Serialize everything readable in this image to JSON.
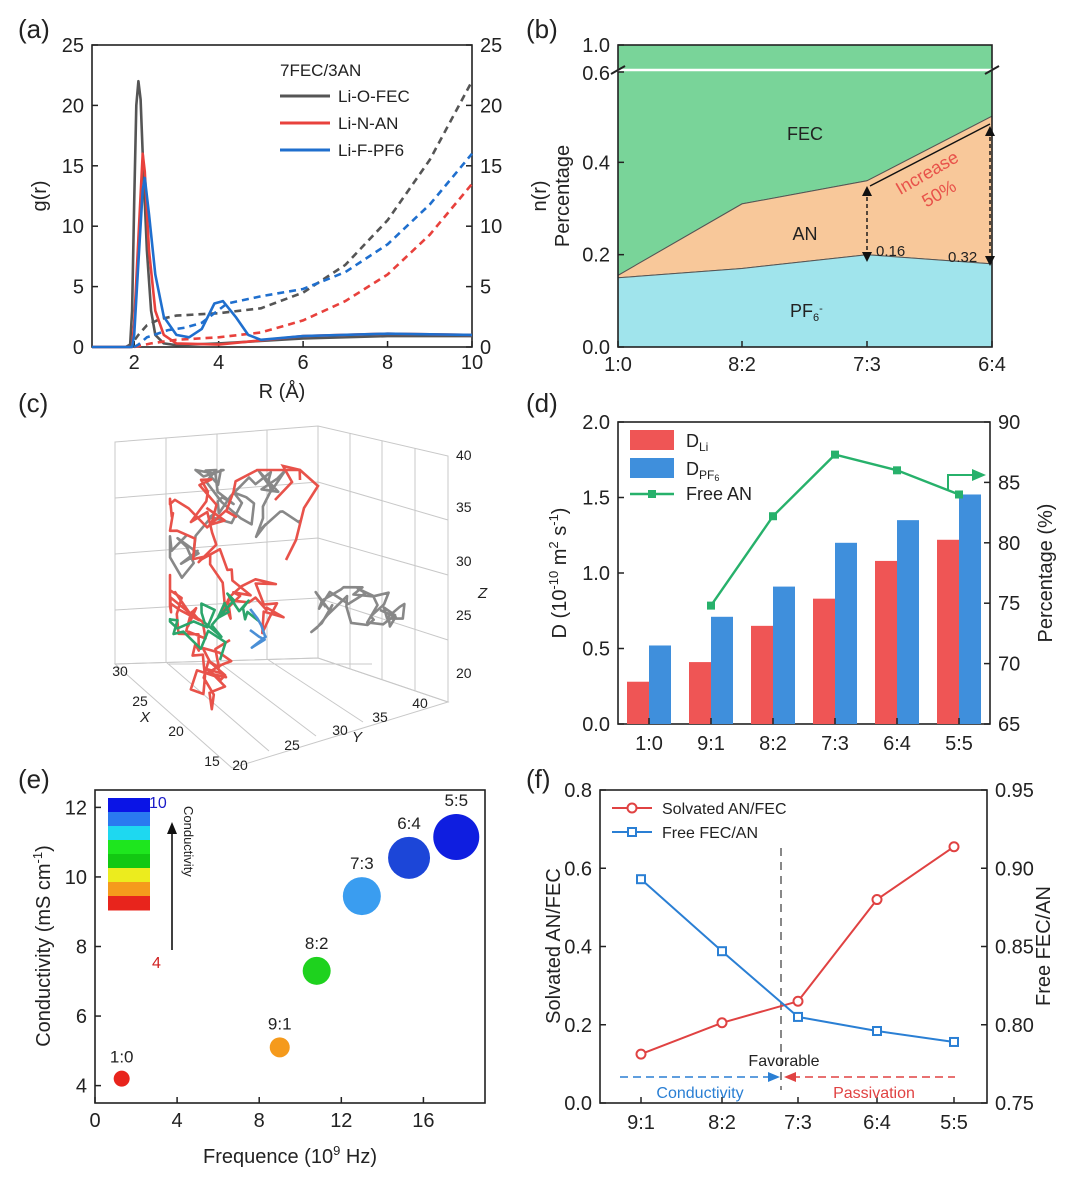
{
  "panel_labels": [
    "(a)",
    "(b)",
    "(c)",
    "(d)",
    "(e)",
    "(f)"
  ],
  "chart_data": [
    {
      "id": "a",
      "type": "line",
      "xlabel": "R (Å)",
      "ylabel": "g(r)",
      "y2label": "n(r)",
      "xlim": [
        1,
        10
      ],
      "ylim": [
        0,
        25
      ],
      "y2lim": [
        0,
        25
      ],
      "xticks": [
        2,
        4,
        6,
        8,
        10
      ],
      "yticks": [
        0,
        5,
        10,
        15,
        20,
        25
      ],
      "legend_title": "7FEC/3AN",
      "series": [
        {
          "name": "Li-O-FEC",
          "color": "#555555",
          "gr": [
            [
              1,
              0
            ],
            [
              1.9,
              0
            ],
            [
              1.95,
              3
            ],
            [
              2.0,
              12
            ],
            [
              2.05,
              20
            ],
            [
              2.1,
              22
            ],
            [
              2.15,
              20.5
            ],
            [
              2.2,
              16
            ],
            [
              2.3,
              8
            ],
            [
              2.4,
              3
            ],
            [
              2.5,
              1
            ],
            [
              2.7,
              0.3
            ],
            [
              3,
              0.15
            ],
            [
              4,
              0.3
            ],
            [
              6,
              0.7
            ],
            [
              8,
              0.9
            ],
            [
              10,
              0.9
            ]
          ],
          "nr": [
            [
              1.8,
              0
            ],
            [
              1.95,
              0.3
            ],
            [
              2.1,
              1
            ],
            [
              2.3,
              1.8
            ],
            [
              2.6,
              2.3
            ],
            [
              3,
              2.6
            ],
            [
              4,
              2.8
            ],
            [
              5,
              3.2
            ],
            [
              6,
              4.5
            ],
            [
              7,
              6.8
            ],
            [
              8,
              10.5
            ],
            [
              9,
              15.5
            ],
            [
              10,
              22
            ]
          ]
        },
        {
          "name": "Li-N-AN",
          "color": "#e8413c",
          "gr": [
            [
              1,
              0
            ],
            [
              1.95,
              0
            ],
            [
              2.0,
              2
            ],
            [
              2.1,
              9
            ],
            [
              2.2,
              16
            ],
            [
              2.25,
              14.5
            ],
            [
              2.35,
              8
            ],
            [
              2.5,
              3
            ],
            [
              2.7,
              1
            ],
            [
              3,
              0.3
            ],
            [
              4,
              0.2
            ],
            [
              6,
              0.9
            ],
            [
              8,
              1.1
            ],
            [
              10,
              1.0
            ]
          ],
          "nr": [
            [
              2.0,
              0
            ],
            [
              2.4,
              0.3
            ],
            [
              3,
              0.6
            ],
            [
              4,
              0.8
            ],
            [
              5,
              1.2
            ],
            [
              6,
              2.2
            ],
            [
              7,
              3.8
            ],
            [
              8,
              6
            ],
            [
              9,
              9.3
            ],
            [
              10,
              13.5
            ]
          ]
        },
        {
          "name": "Li-F-PF6",
          "color": "#1f6fce",
          "gr": [
            [
              1,
              0
            ],
            [
              1.95,
              0
            ],
            [
              2.0,
              1
            ],
            [
              2.1,
              7
            ],
            [
              2.2,
              13
            ],
            [
              2.25,
              14
            ],
            [
              2.35,
              11
            ],
            [
              2.5,
              6
            ],
            [
              2.7,
              2.5
            ],
            [
              3,
              1
            ],
            [
              3.3,
              0.8
            ],
            [
              3.6,
              1.5
            ],
            [
              3.9,
              3.6
            ],
            [
              4.1,
              3.8
            ],
            [
              4.4,
              2.5
            ],
            [
              4.7,
              1
            ],
            [
              5,
              0.6
            ],
            [
              6,
              0.9
            ],
            [
              8,
              1.1
            ],
            [
              10,
              1.0
            ]
          ],
          "nr": [
            [
              2.0,
              0
            ],
            [
              2.1,
              0.2
            ],
            [
              2.3,
              0.8
            ],
            [
              2.8,
              1.4
            ],
            [
              3.2,
              1.6
            ],
            [
              3.6,
              2
            ],
            [
              4.2,
              3.6
            ],
            [
              5,
              4.2
            ],
            [
              6,
              4.8
            ],
            [
              7,
              6.2
            ],
            [
              8,
              8.5
            ],
            [
              9,
              11.8
            ],
            [
              10,
              16
            ]
          ]
        }
      ]
    },
    {
      "id": "b",
      "type": "area",
      "ylabel": "Percentage",
      "categories": [
        "1:0",
        "8:2",
        "7:3",
        "6:4"
      ],
      "yticks": [
        "0.0",
        "0.2",
        "0.4",
        "0.6",
        "1.0"
      ],
      "layers": [
        {
          "name": "PF6-",
          "color": "#a0e4ec",
          "values": [
            0.15,
            0.17,
            0.2,
            0.18
          ]
        },
        {
          "name": "AN",
          "color": "#f8c89a",
          "values": [
            0.005,
            0.14,
            0.16,
            0.32
          ]
        },
        {
          "name": "FEC",
          "color": "#79d499",
          "values_to_top": true
        }
      ],
      "labels": {
        "fec": "FEC",
        "an": "AN",
        "pf6": "PF",
        "pf6_sub": "6",
        "pf6_sup": "-"
      },
      "annotations": {
        "a1": "0.16",
        "a2": "0.32",
        "inc1": "Increase",
        "inc2": "50%"
      }
    },
    {
      "id": "c",
      "type": "scatter3d",
      "axis_labels": [
        "X",
        "Y",
        "Z"
      ],
      "zticks": [
        "20",
        "25",
        "30",
        "35",
        "40"
      ],
      "xticks": [
        "15",
        "20",
        "25",
        "30"
      ],
      "yticks": [
        "20",
        "25",
        "30",
        "35",
        "40"
      ],
      "trajectory_colors": [
        "#888888",
        "#e8524a",
        "#2ba56b",
        "#4a8fd6"
      ]
    },
    {
      "id": "d",
      "type": "bar",
      "categories": [
        "1:0",
        "9:1",
        "8:2",
        "7:3",
        "6:4",
        "5:5"
      ],
      "ylabel": "D (10-10 m2 s-1)",
      "y2label": "Percentage (%)",
      "ylim": [
        0,
        2.0
      ],
      "y2lim": [
        65,
        90
      ],
      "yticks": [
        "0.0",
        "0.5",
        "1.0",
        "1.5",
        "2.0"
      ],
      "y2ticks": [
        "65",
        "70",
        "75",
        "80",
        "85",
        "90"
      ],
      "series": [
        {
          "name": "DLi",
          "color": "#ef5555",
          "values": [
            0.28,
            0.41,
            0.65,
            0.83,
            1.08,
            1.22
          ]
        },
        {
          "name": "DPF6",
          "color": "#3f8fdc",
          "values": [
            0.52,
            0.71,
            0.91,
            1.2,
            1.35,
            1.52
          ]
        },
        {
          "name": "Free AN",
          "color": "#27b16b",
          "type": "line",
          "axis": "right",
          "values": [
            null,
            74.8,
            82.2,
            87.3,
            86.0,
            84.0
          ]
        }
      ],
      "legend": {
        "dli_main": "D",
        "dli_sub": "Li",
        "dpf_main": "D",
        "dpf_sub": "PF",
        "dpf_sub6": "6",
        "free": "Free AN"
      }
    },
    {
      "id": "e",
      "type": "scatter",
      "xlabel": "Frequence (10^9 Hz)",
      "ylabel": "Conductivity (mS cm^-1)",
      "xlim": [
        0,
        19
      ],
      "ylim": [
        3.5,
        12.5
      ],
      "xticks": [
        0,
        4,
        8,
        12,
        16
      ],
      "yticks": [
        4,
        6,
        8,
        10,
        12
      ],
      "points": [
        {
          "label": "1:0",
          "x": 1.3,
          "y": 4.2,
          "color": "#e8241c",
          "r": 8
        },
        {
          "label": "9:1",
          "x": 9.0,
          "y": 5.1,
          "color": "#f59a1c",
          "r": 10
        },
        {
          "label": "8:2",
          "x": 10.8,
          "y": 7.3,
          "color": "#1ed21e",
          "r": 14
        },
        {
          "label": "7:3",
          "x": 13.0,
          "y": 9.45,
          "color": "#3a9df0",
          "r": 19
        },
        {
          "label": "6:4",
          "x": 15.3,
          "y": 10.55,
          "color": "#1c46d8",
          "r": 21
        },
        {
          "label": "5:5",
          "x": 17.6,
          "y": 11.15,
          "color": "#0f1ee0",
          "r": 23
        }
      ],
      "colorbar": {
        "max": "10",
        "min": "4",
        "label": "Conductivity",
        "colors": [
          "#0a14e6",
          "#2a7af0",
          "#1ed8f0",
          "#1ee61e",
          "#12c812",
          "#ecec1e",
          "#f59a1c",
          "#e8241c"
        ]
      }
    },
    {
      "id": "f",
      "type": "line",
      "categories": [
        "9:1",
        "8:2",
        "7:3",
        "6:4",
        "5:5"
      ],
      "ylabel": "Solvated AN/FEC",
      "y2label": "Free FEC/AN",
      "ylim": [
        0,
        0.8
      ],
      "y2lim": [
        0.75,
        0.95
      ],
      "yticks": [
        "0.0",
        "0.2",
        "0.4",
        "0.6",
        "0.8"
      ],
      "y2ticks": [
        "0.75",
        "0.80",
        "0.85",
        "0.90",
        "0.95"
      ],
      "series": [
        {
          "name": "Solvated AN/FEC",
          "color": "#e04242",
          "marker": "circle",
          "axis": "left",
          "values": [
            0.125,
            0.205,
            0.26,
            0.52,
            0.655
          ]
        },
        {
          "name": "Free FEC/AN",
          "color": "#2a7fd4",
          "marker": "square",
          "axis": "right",
          "values": [
            0.893,
            0.847,
            0.805,
            0.796,
            0.789
          ]
        }
      ],
      "annotations": {
        "favorable": "Favorable",
        "conductivity": "Conductivity",
        "passivation": "Passivation"
      }
    }
  ]
}
